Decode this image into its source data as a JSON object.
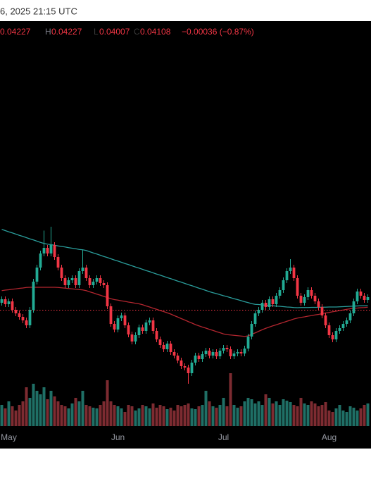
{
  "header": {
    "timestamp": "6, 2025 21:15 UTC",
    "open": 0.04227,
    "high_label": "H",
    "high": 0.04227,
    "low_label": "L",
    "low": 0.04007,
    "close_label": "C",
    "close": 0.04108,
    "change": "−0.00036 (−0.87%)"
  },
  "chart_data": {
    "type": "candlestick",
    "categories": [
      null,
      null,
      "May",
      null,
      null,
      null,
      null,
      null,
      null,
      null,
      null,
      null,
      null,
      null,
      null,
      null,
      null,
      null,
      null,
      null,
      null,
      null,
      null,
      null,
      null,
      null,
      null,
      null,
      null,
      null,
      null,
      null,
      null,
      "Jun",
      null,
      null,
      null,
      null,
      null,
      null,
      null,
      null,
      null,
      null,
      null,
      null,
      null,
      null,
      null,
      null,
      null,
      null,
      null,
      null,
      null,
      null,
      null,
      null,
      null,
      null,
      null,
      null,
      null,
      "Jul",
      null,
      null,
      null,
      null,
      null,
      null,
      null,
      null,
      null,
      null,
      null,
      null,
      null,
      null,
      null,
      null,
      null,
      null,
      null,
      null,
      null,
      null,
      null,
      null,
      null,
      null,
      null,
      null,
      null,
      "Aug",
      null,
      null,
      null,
      null,
      null,
      null,
      null,
      null,
      null,
      null,
      null
    ],
    "open": [
      0.0415,
      0.0417,
      0.04142,
      0.04158,
      0.0411,
      0.0409,
      0.0407,
      0.0405,
      0.04022,
      0.0411,
      0.0427,
      0.0435,
      0.0443,
      0.04462,
      0.0443,
      0.04478,
      0.0441,
      0.0435,
      0.0429,
      0.0425,
      0.04278,
      0.0429,
      0.0425,
      0.0433,
      0.0435,
      0.0429,
      0.0425,
      0.0427,
      0.0429,
      0.04262,
      0.0425,
      0.0413,
      0.0403,
      0.03998,
      0.04062,
      0.04078,
      0.04022,
      0.0397,
      0.0393,
      0.03966,
      0.0401,
      0.0399,
      0.04038,
      0.0405,
      0.0399,
      0.03942,
      0.0391,
      0.03886,
      0.03918,
      0.0387,
      0.0385,
      0.03822,
      0.0379,
      0.03782,
      0.0375,
      0.0381,
      0.0385,
      0.0383,
      0.03858,
      0.03878,
      0.0385,
      0.0387,
      0.03846,
      0.03878,
      0.03894,
      0.03886,
      0.03846,
      0.03862,
      0.0387,
      0.03862,
      0.0389,
      0.03958,
      0.0403,
      0.0409,
      0.0411,
      0.0415,
      0.04126,
      0.0417,
      0.04142,
      0.0419,
      0.04222,
      0.04278,
      0.0433,
      0.0435,
      0.0429,
      0.0419,
      0.0415,
      0.04182,
      0.04222,
      0.0419,
      0.04158,
      0.04126,
      0.04078,
      0.04022,
      0.03966,
      0.03942,
      0.0399,
      0.04006,
      0.0403,
      0.0405,
      0.0409,
      0.04158,
      0.04214,
      0.0419,
      0.04166
    ],
    "high": [
      0.04186,
      0.04186,
      0.04174,
      0.04174,
      0.04126,
      0.04106,
      0.04086,
      0.04066,
      0.04126,
      0.04286,
      0.04366,
      0.04446,
      0.0456,
      0.04478,
      0.04582,
      0.04494,
      0.04426,
      0.04366,
      0.04306,
      0.04294,
      0.04306,
      0.04306,
      0.04346,
      0.0445,
      0.04366,
      0.04306,
      0.04286,
      0.04306,
      0.04306,
      0.04278,
      0.04266,
      0.04146,
      0.04046,
      0.04078,
      0.04094,
      0.04094,
      0.04038,
      0.03986,
      0.03982,
      0.04026,
      0.04026,
      0.04054,
      0.04066,
      0.04066,
      0.04006,
      0.03958,
      0.03926,
      0.03934,
      0.03934,
      0.03886,
      0.03866,
      0.03838,
      0.03806,
      0.03798,
      0.03826,
      0.03866,
      0.03866,
      0.03874,
      0.03894,
      0.03894,
      0.03886,
      0.03886,
      0.03894,
      0.0391,
      0.0391,
      0.03902,
      0.03878,
      0.03886,
      0.03886,
      0.03906,
      0.03974,
      0.04046,
      0.04106,
      0.04126,
      0.04166,
      0.04166,
      0.04186,
      0.04186,
      0.04206,
      0.04238,
      0.04294,
      0.04346,
      0.04398,
      0.04366,
      0.04306,
      0.04206,
      0.04198,
      0.04238,
      0.04238,
      0.04206,
      0.04174,
      0.04142,
      0.04094,
      0.04038,
      0.03982,
      0.04006,
      0.04022,
      0.04046,
      0.04066,
      0.04106,
      0.04174,
      0.0423,
      0.0423,
      0.04206,
      0.04198
    ],
    "low": [
      0.04134,
      0.04126,
      0.04126,
      0.04094,
      0.04074,
      0.04054,
      0.04034,
      0.04006,
      0.04006,
      0.04094,
      0.04254,
      0.04334,
      0.04414,
      0.04414,
      0.04414,
      0.04394,
      0.04334,
      0.04274,
      0.04234,
      0.04234,
      0.04262,
      0.04234,
      0.04234,
      0.04314,
      0.04274,
      0.04234,
      0.04234,
      0.04254,
      0.04246,
      0.04234,
      0.04114,
      0.04014,
      0.03982,
      0.03982,
      0.04046,
      0.04006,
      0.03954,
      0.03914,
      0.03914,
      0.0395,
      0.03974,
      0.03974,
      0.04022,
      0.03974,
      0.03926,
      0.03894,
      0.0387,
      0.0387,
      0.03854,
      0.03834,
      0.03806,
      0.03774,
      0.03766,
      0.0369,
      0.03734,
      0.03794,
      0.03814,
      0.03814,
      0.03842,
      0.03834,
      0.03834,
      0.0383,
      0.0383,
      0.03862,
      0.0387,
      0.0383,
      0.0383,
      0.03846,
      0.03846,
      0.03846,
      0.03874,
      0.03942,
      0.04014,
      0.04074,
      0.04094,
      0.0411,
      0.0411,
      0.04126,
      0.04126,
      0.04174,
      0.04206,
      0.04262,
      0.04314,
      0.04274,
      0.04174,
      0.04134,
      0.04134,
      0.04166,
      0.04174,
      0.04142,
      0.0411,
      0.04062,
      0.04006,
      0.0395,
      0.03926,
      0.03926,
      0.03974,
      0.0399,
      0.04014,
      0.04034,
      0.04074,
      0.04142,
      0.04174,
      0.0415,
      0.0415
    ],
    "close": [
      0.0417,
      0.04142,
      0.04158,
      0.0411,
      0.0409,
      0.0407,
      0.0405,
      0.04022,
      0.0411,
      0.0427,
      0.0435,
      0.0443,
      0.04462,
      0.0443,
      0.04478,
      0.0441,
      0.0435,
      0.0429,
      0.0425,
      0.04278,
      0.0429,
      0.0425,
      0.0433,
      0.0435,
      0.0429,
      0.0425,
      0.0427,
      0.0429,
      0.04262,
      0.0425,
      0.0413,
      0.0403,
      0.03998,
      0.04062,
      0.04078,
      0.04022,
      0.0397,
      0.0393,
      0.03966,
      0.0401,
      0.0399,
      0.04038,
      0.0405,
      0.0399,
      0.03942,
      0.0391,
      0.03886,
      0.03918,
      0.0387,
      0.0385,
      0.03822,
      0.0379,
      0.03782,
      0.0375,
      0.0381,
      0.0385,
      0.0383,
      0.03858,
      0.03878,
      0.0385,
      0.0387,
      0.03846,
      0.03878,
      0.03894,
      0.03886,
      0.03846,
      0.03862,
      0.0387,
      0.03862,
      0.0389,
      0.03958,
      0.0403,
      0.0409,
      0.0411,
      0.0415,
      0.04126,
      0.0417,
      0.04142,
      0.0419,
      0.04222,
      0.04278,
      0.0433,
      0.0435,
      0.0429,
      0.0419,
      0.0415,
      0.04182,
      0.04222,
      0.0419,
      0.04158,
      0.04126,
      0.04078,
      0.04022,
      0.03966,
      0.03942,
      0.0399,
      0.04006,
      0.0403,
      0.0405,
      0.0409,
      0.04158,
      0.04214,
      0.0419,
      0.04166,
      0.04182
    ],
    "volume": [
      30,
      25,
      35,
      28,
      22,
      30,
      35,
      55,
      40,
      60,
      50,
      45,
      55,
      38,
      50,
      42,
      35,
      30,
      28,
      25,
      32,
      40,
      35,
      50,
      30,
      28,
      26,
      25,
      30,
      35,
      65,
      35,
      30,
      28,
      25,
      20,
      30,
      28,
      22,
      25,
      30,
      28,
      25,
      32,
      26,
      30,
      28,
      24,
      26,
      22,
      30,
      28,
      30,
      32,
      25,
      24,
      28,
      30,
      50,
      35,
      28,
      26,
      30,
      40,
      28,
      75,
      30,
      26,
      28,
      35,
      40,
      38,
      32,
      35,
      30,
      45,
      40,
      32,
      35,
      30,
      38,
      36,
      34,
      30,
      28,
      40,
      32,
      30,
      35,
      32,
      28,
      30,
      34,
      22,
      20,
      25,
      30,
      22,
      20,
      28,
      26,
      22,
      25,
      30,
      32
    ],
    "lines": [
      {
        "color": "#2a9d9b",
        "values": [
          0.04567,
          0.0456,
          0.04553,
          0.04547,
          0.0454,
          0.04533,
          0.04527,
          0.0452,
          0.04513,
          0.04507,
          0.045,
          0.04493,
          0.04487,
          0.04483,
          0.0448,
          0.04477,
          0.04473,
          0.0447,
          0.04467,
          0.04463,
          0.0446,
          0.04457,
          0.04453,
          0.04451,
          0.04447,
          0.0444,
          0.04433,
          0.04427,
          0.0442,
          0.04413,
          0.04407,
          0.044,
          0.04393,
          0.04387,
          0.0438,
          0.04373,
          0.04367,
          0.0436,
          0.04353,
          0.04347,
          0.0434,
          0.04333,
          0.04327,
          0.0432,
          0.04313,
          0.04307,
          0.043,
          0.04293,
          0.04287,
          0.0428,
          0.04273,
          0.04267,
          0.0426,
          0.04253,
          0.04247,
          0.0424,
          0.04233,
          0.04227,
          0.0422,
          0.04213,
          0.04207,
          0.04202,
          0.04196,
          0.0419,
          0.04185,
          0.04179,
          0.04173,
          0.04168,
          0.04162,
          0.04156,
          0.04151,
          0.04145,
          0.04141,
          0.0414,
          0.04138,
          0.04136,
          0.04135,
          0.04133,
          0.04131,
          0.0413,
          0.04128,
          0.04126,
          0.04125,
          0.04123,
          0.04122,
          0.04123,
          0.04123,
          0.04123,
          0.04124,
          0.04124,
          0.04124,
          0.04125,
          0.04125,
          0.04126,
          0.04126,
          0.04126,
          0.04127,
          0.04128,
          0.04129,
          0.0413,
          0.04131,
          0.04132,
          0.04133,
          0.04133,
          0.04134
        ]
      },
      {
        "color": "#b3262f",
        "values": [
          0.04219,
          0.04222,
          0.04224,
          0.04227,
          0.04229,
          0.04232,
          0.04234,
          0.04237,
          0.04238,
          0.04238,
          0.04238,
          0.04238,
          0.04238,
          0.04238,
          0.04238,
          0.04238,
          0.04237,
          0.04235,
          0.04233,
          0.04231,
          0.04229,
          0.04227,
          0.04225,
          0.04223,
          0.04219,
          0.04212,
          0.04206,
          0.04199,
          0.04193,
          0.04186,
          0.0418,
          0.04173,
          0.04168,
          0.04165,
          0.04161,
          0.04158,
          0.04154,
          0.04151,
          0.04147,
          0.04144,
          0.04139,
          0.04132,
          0.04126,
          0.04119,
          0.04113,
          0.04106,
          0.041,
          0.04093,
          0.04086,
          0.04077,
          0.04069,
          0.0406,
          0.04052,
          0.04043,
          0.04035,
          0.04026,
          0.04019,
          0.04012,
          0.04006,
          0.03999,
          0.03993,
          0.03986,
          0.0398,
          0.03973,
          0.03969,
          0.03967,
          0.03965,
          0.03963,
          0.03961,
          0.03959,
          0.03962,
          0.03971,
          0.03979,
          0.03988,
          0.03997,
          0.04005,
          0.04012,
          0.04019,
          0.04025,
          0.04032,
          0.04038,
          0.04045,
          0.04051,
          0.04058,
          0.04063,
          0.04067,
          0.0407,
          0.04074,
          0.04077,
          0.04081,
          0.04084,
          0.04088,
          0.04092,
          0.04095,
          0.04099,
          0.04102,
          0.04106,
          0.04109,
          0.04113,
          0.04116,
          0.04119,
          0.0412,
          0.04122,
          0.04123,
          0.04125
        ]
      }
    ],
    "up_color": "#22ab94",
    "down_color": "#f23645",
    "volume_up_color": "#1f6f66",
    "volume_down_color": "#7d2b31",
    "last_price_color": "#f23645",
    "ylim": [
      0.035,
      0.0575
    ],
    "vlim": [
      0,
      130
    ]
  }
}
